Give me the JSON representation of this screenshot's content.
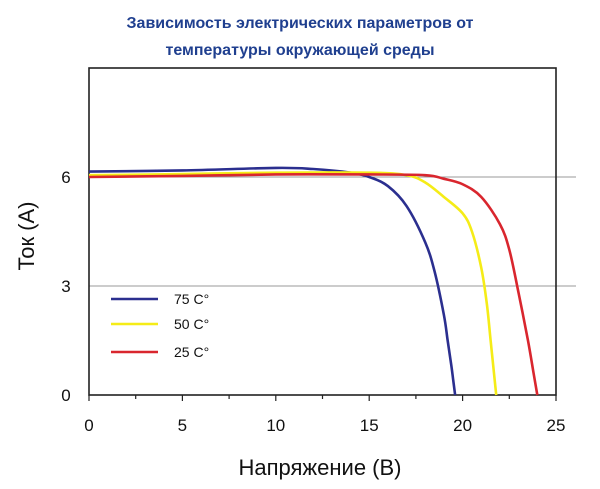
{
  "chart_data": {
    "type": "line",
    "title_lines": [
      "Зависимость электрических параметров от",
      "температуры окружающей среды"
    ],
    "xlabel": "Напряжение (В)",
    "ylabel": "Ток (А)",
    "xlim": [
      0,
      25
    ],
    "ylim": [
      0,
      9
    ],
    "xticks": [
      0,
      5,
      10,
      15,
      20,
      25
    ],
    "yticks": [
      0,
      3,
      6
    ],
    "grid": "horizontal at y ticks",
    "legend_position": "lower-left",
    "series": [
      {
        "name": "75 C°",
        "color": "#2b2f8f",
        "x": [
          0,
          5,
          10,
          12,
          14,
          15,
          16,
          17,
          18,
          18.5,
          19,
          19.2,
          19.4,
          19.5,
          19.6
        ],
        "y": [
          6.15,
          6.18,
          6.25,
          6.22,
          6.12,
          6.0,
          5.75,
          5.2,
          4.2,
          3.4,
          2.2,
          1.5,
          0.8,
          0.4,
          0
        ]
      },
      {
        "name": "50 C°",
        "color": "#f5ec17",
        "x": [
          0,
          5,
          10,
          15,
          17,
          18,
          19,
          20,
          20.5,
          21,
          21.3,
          21.5,
          21.7,
          21.8
        ],
        "y": [
          6.05,
          6.08,
          6.12,
          6.12,
          6.05,
          5.85,
          5.45,
          5.0,
          4.5,
          3.5,
          2.5,
          1.5,
          0.5,
          0
        ]
      },
      {
        "name": "25 C°",
        "color": "#d9262e",
        "x": [
          0,
          5,
          10,
          15,
          18,
          19,
          20,
          21,
          22,
          22.5,
          23,
          23.5,
          23.8,
          24.0
        ],
        "y": [
          6.0,
          6.03,
          6.07,
          6.07,
          6.05,
          5.95,
          5.8,
          5.45,
          4.7,
          4.0,
          2.8,
          1.5,
          0.6,
          0
        ]
      }
    ]
  }
}
